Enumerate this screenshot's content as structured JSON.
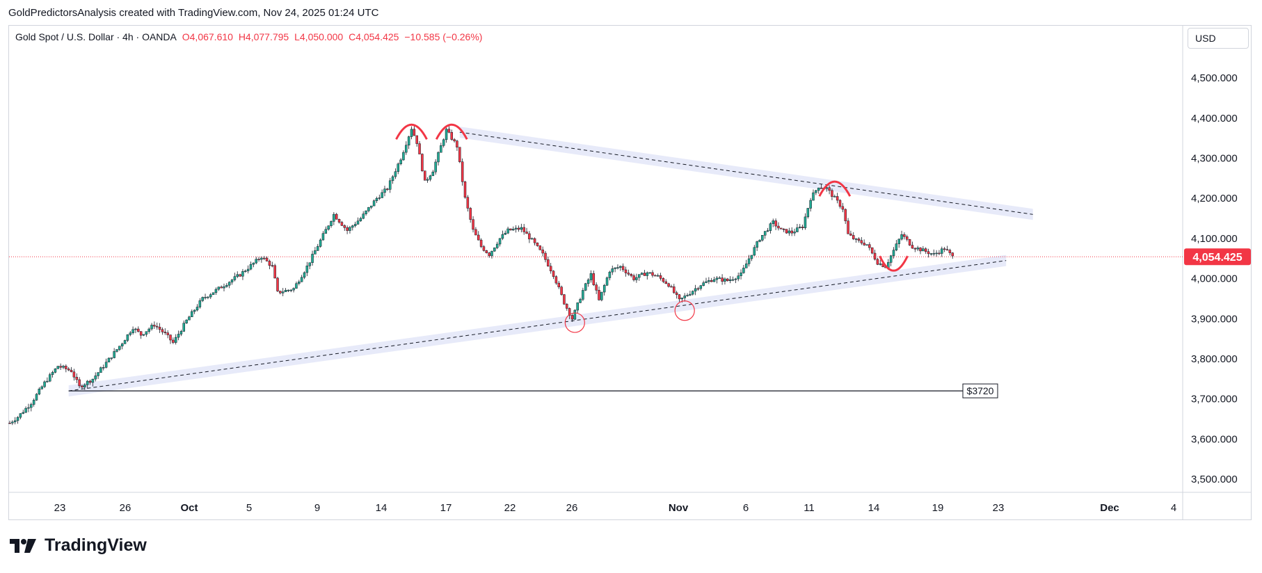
{
  "caption": "GoldPredictorsAnalysis created with TradingView.com, Nov 24, 2025 01:24 UTC",
  "legend": {
    "symbol": "Gold Spot / U.S. Dollar · 4h · OANDA",
    "open": "O4,067.610",
    "high": "H4,077.795",
    "low": "L4,050.000",
    "close": "C4,054.425",
    "change": "−10.585 (−0.26%)"
  },
  "currency": "USD",
  "brand": "TradingView",
  "colors": {
    "up": "#22ab94",
    "down": "#f23645",
    "channel": "#dfe3f7",
    "arc": "#f23645",
    "lastPrice": "#f23645"
  },
  "chart_data": {
    "type": "candlestick",
    "timeframe": "4h",
    "ylim": [
      3450,
      4600
    ],
    "yticks": [
      "3,500.000",
      "3,600.000",
      "3,700.000",
      "3,800.000",
      "3,900.000",
      "4,000.000",
      "4,100.000",
      "4,200.000",
      "4,300.000",
      "4,400.000",
      "4,500.000"
    ],
    "ytick_values": [
      3500,
      3600,
      3700,
      3800,
      3900,
      4000,
      4100,
      4200,
      4300,
      4400,
      4500
    ],
    "xticks": [
      "23",
      "26",
      "Oct",
      "5",
      "9",
      "14",
      "17",
      "22",
      "26",
      "Nov",
      "6",
      "11",
      "14",
      "19",
      "23",
      "Dec",
      "4"
    ],
    "last_price_label": "4,054.425",
    "last_price": 4054.425,
    "price_path": [
      [
        0,
        3640
      ],
      [
        3,
        3655
      ],
      [
        8,
        3690
      ],
      [
        13,
        3740
      ],
      [
        18,
        3782
      ],
      [
        23,
        3770
      ],
      [
        26,
        3730
      ],
      [
        31,
        3750
      ],
      [
        36,
        3790
      ],
      [
        42,
        3840
      ],
      [
        46,
        3878
      ],
      [
        49,
        3860
      ],
      [
        54,
        3885
      ],
      [
        58,
        3862
      ],
      [
        61,
        3840
      ],
      [
        66,
        3895
      ],
      [
        72,
        3950
      ],
      [
        78,
        3975
      ],
      [
        86,
        4010
      ],
      [
        94,
        4055
      ],
      [
        98,
        4030
      ],
      [
        100,
        3965
      ],
      [
        106,
        3975
      ],
      [
        111,
        4030
      ],
      [
        116,
        4095
      ],
      [
        121,
        4160
      ],
      [
        126,
        4120
      ],
      [
        131,
        4150
      ],
      [
        137,
        4200
      ],
      [
        141,
        4225
      ],
      [
        146,
        4300
      ],
      [
        150,
        4375
      ],
      [
        152,
        4340
      ],
      [
        155,
        4240
      ],
      [
        158,
        4270
      ],
      [
        160,
        4310
      ],
      [
        163,
        4370
      ],
      [
        167,
        4330
      ],
      [
        170,
        4200
      ],
      [
        173,
        4120
      ],
      [
        176,
        4080
      ],
      [
        179,
        4060
      ],
      [
        183,
        4100
      ],
      [
        186,
        4120
      ],
      [
        191,
        4125
      ],
      [
        195,
        4095
      ],
      [
        199,
        4060
      ],
      [
        203,
        4010
      ],
      [
        207,
        3940
      ],
      [
        210,
        3900
      ],
      [
        214,
        3970
      ],
      [
        217,
        4010
      ],
      [
        220,
        3945
      ],
      [
        224,
        4020
      ],
      [
        228,
        4030
      ],
      [
        233,
        4000
      ],
      [
        238,
        4015
      ],
      [
        242,
        4005
      ],
      [
        246,
        3985
      ],
      [
        250,
        3945
      ],
      [
        254,
        3965
      ],
      [
        258,
        3985
      ],
      [
        263,
        4000
      ],
      [
        268,
        3995
      ],
      [
        273,
        4010
      ],
      [
        276,
        4050
      ],
      [
        280,
        4100
      ],
      [
        285,
        4140
      ],
      [
        288,
        4120
      ],
      [
        292,
        4115
      ],
      [
        296,
        4130
      ],
      [
        299,
        4200
      ],
      [
        302,
        4230
      ],
      [
        305,
        4225
      ],
      [
        308,
        4200
      ],
      [
        311,
        4175
      ],
      [
        313,
        4110
      ],
      [
        316,
        4095
      ],
      [
        320,
        4085
      ],
      [
        324,
        4040
      ],
      [
        327,
        4030
      ],
      [
        330,
        4070
      ],
      [
        333,
        4110
      ],
      [
        337,
        4080
      ],
      [
        341,
        4070
      ],
      [
        345,
        4060
      ],
      [
        349,
        4075
      ],
      [
        352,
        4054
      ]
    ],
    "annotations": {
      "horizontal_line_label": "$3720",
      "horizontal_line_value": 3720,
      "upper_trendline": {
        "from": [
          168,
          4365
        ],
        "to": [
          382,
          4160
        ]
      },
      "lower_trendline": {
        "from": [
          22,
          3720
        ],
        "to": [
          372,
          4045
        ]
      },
      "tops": [
        [
          150,
          4382
        ],
        [
          165,
          4382
        ],
        [
          308,
          4240
        ]
      ],
      "bottoms_circles": [
        [
          211,
          3890
        ],
        [
          252,
          3920
        ]
      ],
      "bottom_arc": [
        330,
        4025
      ]
    },
    "xmax": 430
  }
}
